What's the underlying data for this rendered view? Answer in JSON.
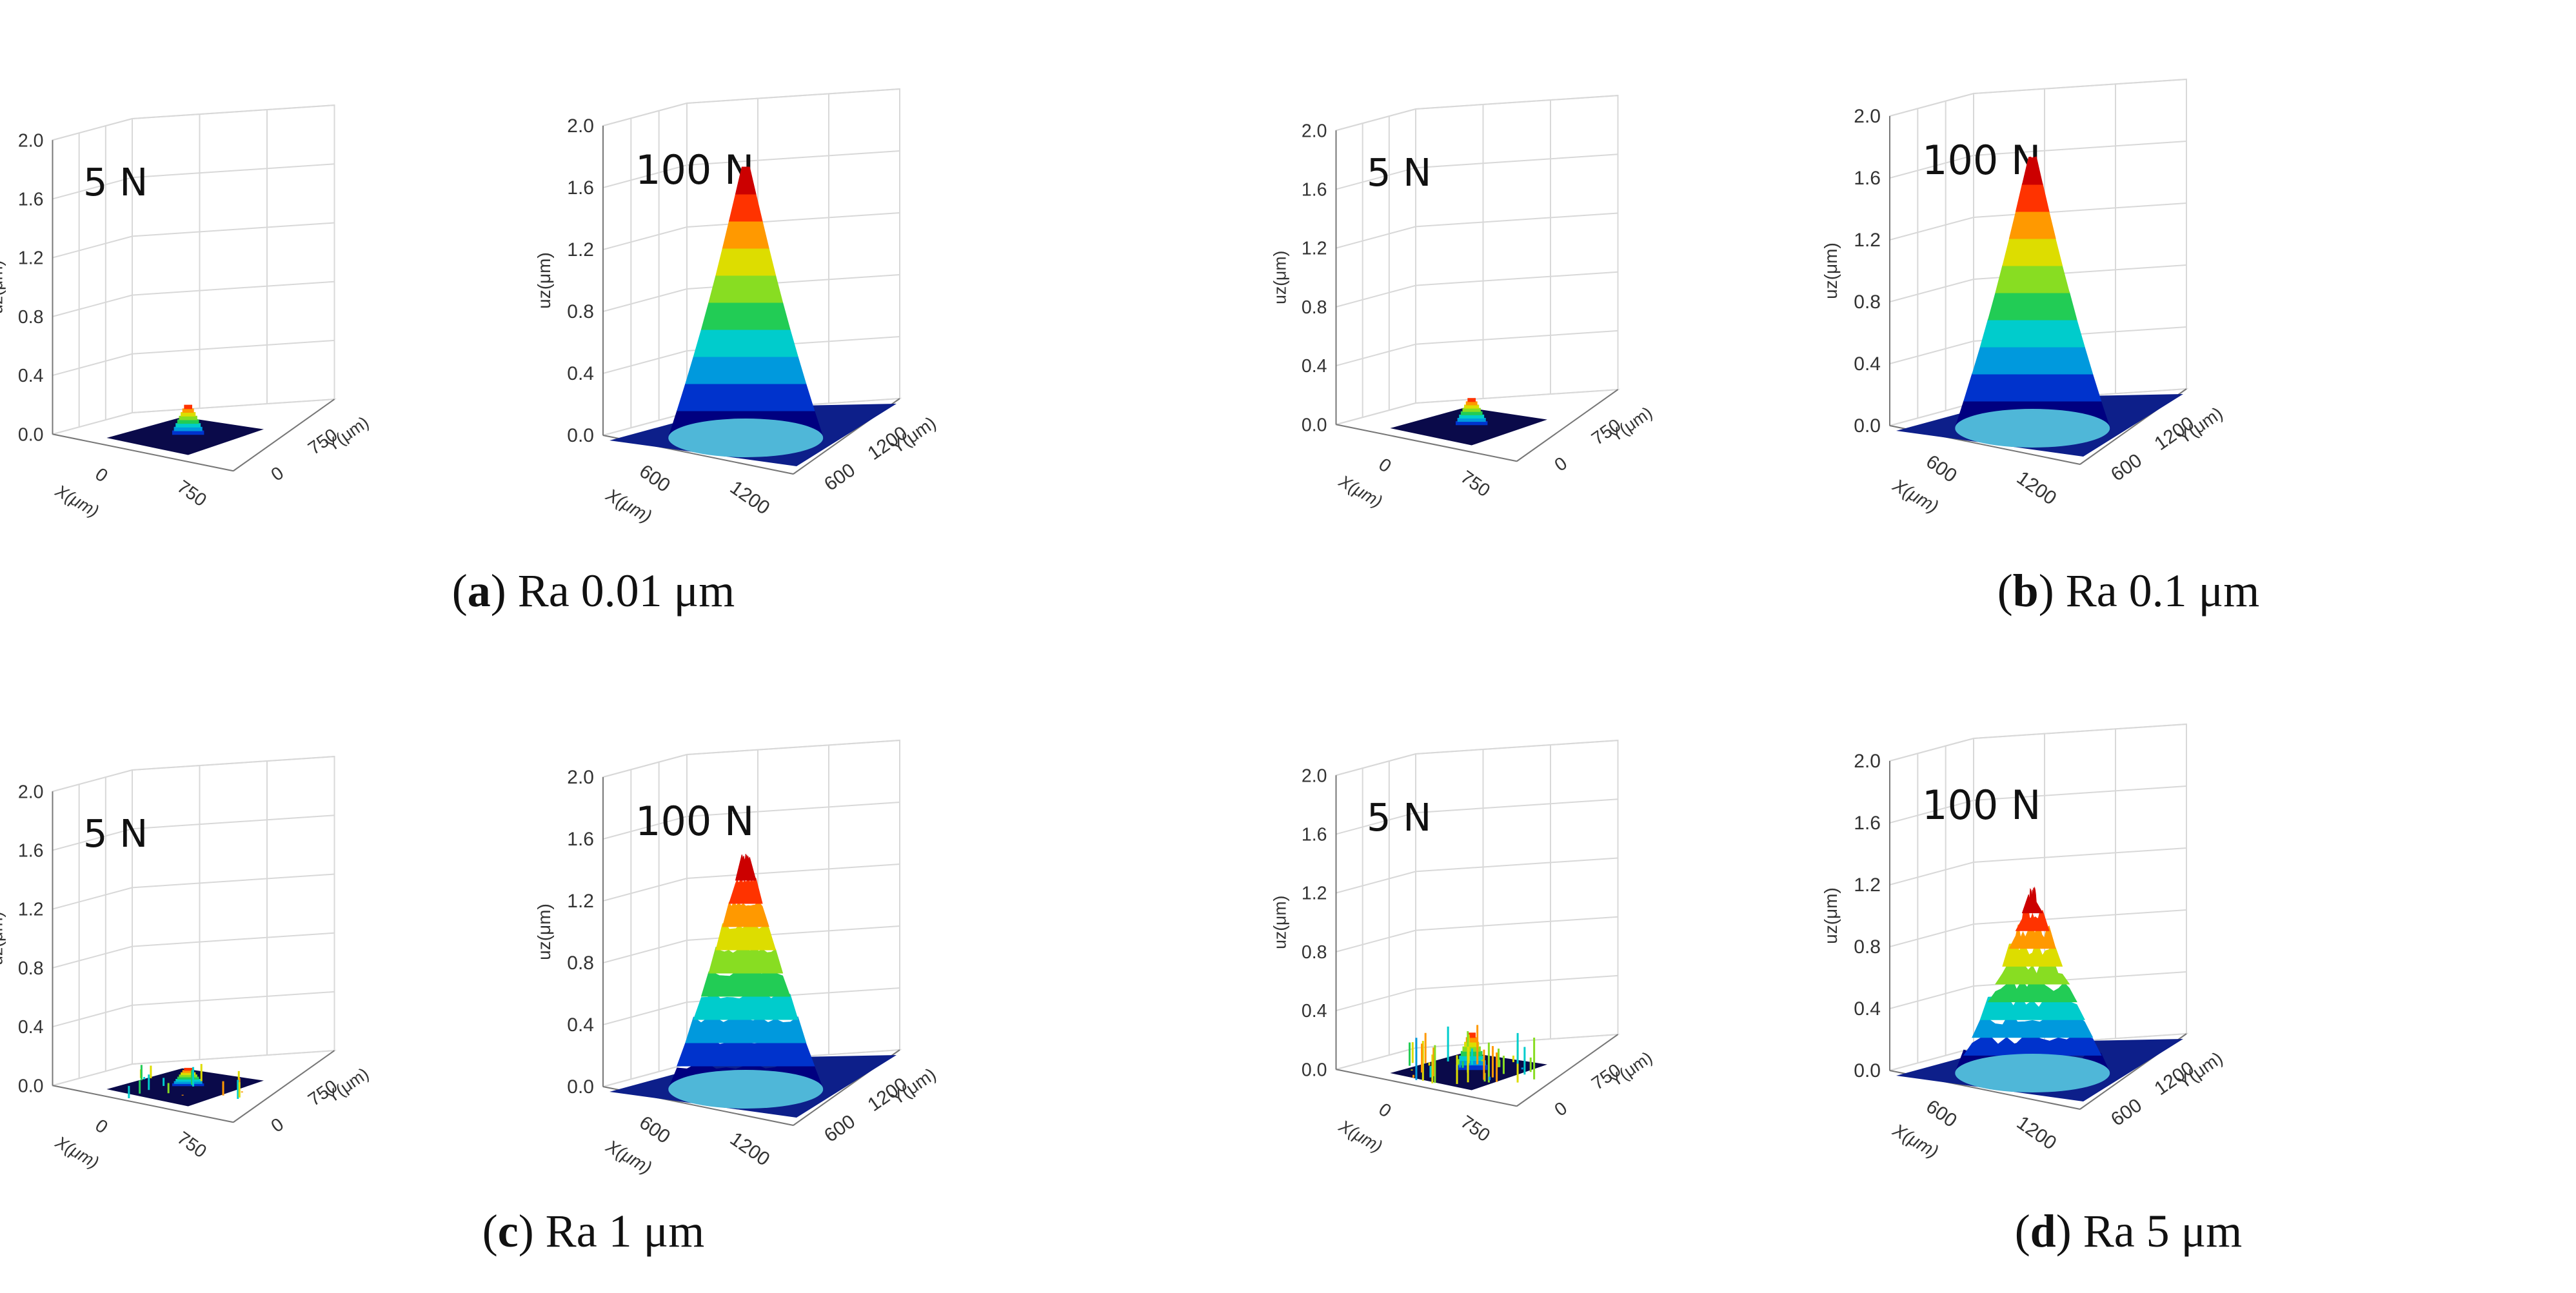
{
  "figure": {
    "panels": [
      {
        "id": "a",
        "caption_label": "a",
        "caption_text": "Ra 0.01 μm",
        "roughness_um": 0.01
      },
      {
        "id": "b",
        "caption_label": "b",
        "caption_text": "Ra 0.1 μm",
        "roughness_um": 0.1
      },
      {
        "id": "c",
        "caption_label": "c",
        "caption_text": "Ra 1 μm",
        "roughness_um": 1
      },
      {
        "id": "d",
        "caption_label": "d",
        "caption_text": "Ra 5 μm",
        "roughness_um": 5
      }
    ]
  },
  "chart_data": [
    {
      "panel": "a",
      "load": "5 N",
      "type": "surface3d",
      "zlabel": "uz(μm)",
      "xlabel": "X(μm)",
      "ylabel": "Y(μm)",
      "zlim": [
        0,
        2.0
      ],
      "zticks": [
        "0.0",
        "0.4",
        "0.8",
        "1.2",
        "1.6",
        "2.0"
      ],
      "xticks": [
        "0",
        "750"
      ],
      "yticks": [
        "0",
        "750"
      ],
      "peak_uz": 0.2,
      "rough": 0.0
    },
    {
      "panel": "a",
      "load": "100 N",
      "type": "surface3d",
      "zlabel": "uz(μm)",
      "xlabel": "X(μm)",
      "ylabel": "Y(μm)",
      "zlim": [
        0,
        2.0
      ],
      "zticks": [
        "0.0",
        "0.4",
        "0.8",
        "1.2",
        "1.6",
        "2.0"
      ],
      "xticks": [
        "600",
        "1200"
      ],
      "yticks": [
        "600",
        "1200"
      ],
      "peak_uz": 1.75,
      "rough": 0.0
    },
    {
      "panel": "b",
      "load": "5 N",
      "type": "surface3d",
      "zlabel": "uz(μm)",
      "xlabel": "X(μm)",
      "ylabel": "Y(μm)",
      "zlim": [
        0,
        2.0
      ],
      "zticks": [
        "0.0",
        "0.4",
        "0.8",
        "1.2",
        "1.6",
        "2.0"
      ],
      "xticks": [
        "0",
        "750"
      ],
      "yticks": [
        "0",
        "750"
      ],
      "peak_uz": 0.18,
      "rough": 0.2
    },
    {
      "panel": "b",
      "load": "100 N",
      "type": "surface3d",
      "zlabel": "uz(μm)",
      "xlabel": "X(μm)",
      "ylabel": "Y(μm)",
      "zlim": [
        0,
        2.0
      ],
      "zticks": [
        "0.0",
        "0.4",
        "0.8",
        "1.2",
        "1.6",
        "2.0"
      ],
      "xticks": [
        "600",
        "1200"
      ],
      "yticks": [
        "600",
        "1200"
      ],
      "peak_uz": 1.75,
      "rough": 0.05
    },
    {
      "panel": "c",
      "load": "5 N",
      "type": "surface3d",
      "zlabel": "uz(μm)",
      "xlabel": "X(μm)",
      "ylabel": "Y(μm)",
      "zlim": [
        0,
        2.0
      ],
      "zticks": [
        "0.0",
        "0.4",
        "0.8",
        "1.2",
        "1.6",
        "2.0"
      ],
      "xticks": [
        "0",
        "750"
      ],
      "yticks": [
        "0",
        "750"
      ],
      "peak_uz": 0.12,
      "rough": 0.5
    },
    {
      "panel": "c",
      "load": "100 N",
      "type": "surface3d",
      "zlabel": "uz(μm)",
      "xlabel": "X(μm)",
      "ylabel": "Y(μm)",
      "zlim": [
        0,
        2.0
      ],
      "zticks": [
        "0.0",
        "0.4",
        "0.8",
        "1.2",
        "1.6",
        "2.0"
      ],
      "xticks": [
        "600",
        "1200"
      ],
      "yticks": [
        "600",
        "1200"
      ],
      "peak_uz": 1.5,
      "rough": 0.25
    },
    {
      "panel": "d",
      "load": "5 N",
      "type": "surface3d",
      "zlabel": "uz(μm)",
      "xlabel": "X(μm)",
      "ylabel": "Y(μm)",
      "zlim": [
        0,
        2.0
      ],
      "zticks": [
        "0.0",
        "0.4",
        "0.8",
        "1.2",
        "1.6",
        "2.0"
      ],
      "xticks": [
        "0",
        "750"
      ],
      "yticks": [
        "0",
        "750"
      ],
      "peak_uz": 0.25,
      "rough": 1.0
    },
    {
      "panel": "d",
      "load": "100 N",
      "type": "surface3d",
      "zlabel": "uz(μm)",
      "xlabel": "X(μm)",
      "ylabel": "Y(μm)",
      "zlim": [
        0,
        2.0
      ],
      "zticks": [
        "0.0",
        "0.4",
        "0.8",
        "1.2",
        "1.6",
        "2.0"
      ],
      "xticks": [
        "600",
        "1200"
      ],
      "yticks": [
        "600",
        "1200"
      ],
      "peak_uz": 1.15,
      "rough": 0.6
    }
  ],
  "colors": {
    "jet": [
      "#000080",
      "#0033cc",
      "#0099dd",
      "#00cccc",
      "#22cc55",
      "#88dd22",
      "#dddd00",
      "#ff9900",
      "#ff3300",
      "#cc0000"
    ],
    "base": "#0a1a7a",
    "grid": "#d8d8d8",
    "axis": "#777777"
  }
}
